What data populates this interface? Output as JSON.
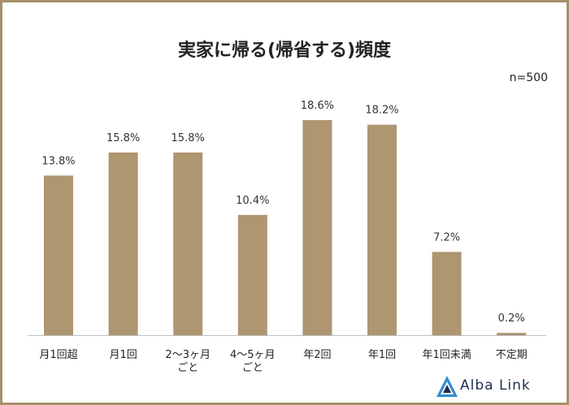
{
  "title": "実家に帰る(帰省する)頻度",
  "sample_note": "n=500",
  "brand": {
    "name": "Alba Link"
  },
  "colors": {
    "bar": "#ad9670",
    "frame": "#a6916b",
    "axis": "#bfbfbf",
    "brand": "#1f2d4d",
    "brand_accent": "#2e8bd0"
  },
  "chart_data": {
    "type": "bar",
    "title": "実家に帰る(帰省する)頻度",
    "categories": [
      [
        "月1回超"
      ],
      [
        "月1回"
      ],
      [
        "2～3ヶ月",
        "ごと"
      ],
      [
        "4～5ヶ月",
        "ごと"
      ],
      [
        "年2回"
      ],
      [
        "年1回"
      ],
      [
        "年1回未満"
      ],
      [
        "不定期"
      ]
    ],
    "values": [
      13.8,
      15.8,
      15.8,
      10.4,
      18.6,
      18.2,
      7.2,
      0.2
    ],
    "value_labels": [
      "13.8%",
      "15.8%",
      "15.8%",
      "10.4%",
      "18.6%",
      "18.2%",
      "7.2%",
      "0.2%"
    ],
    "unit": "%",
    "ylim": [
      0,
      20
    ],
    "grid": false,
    "legend": "none"
  }
}
